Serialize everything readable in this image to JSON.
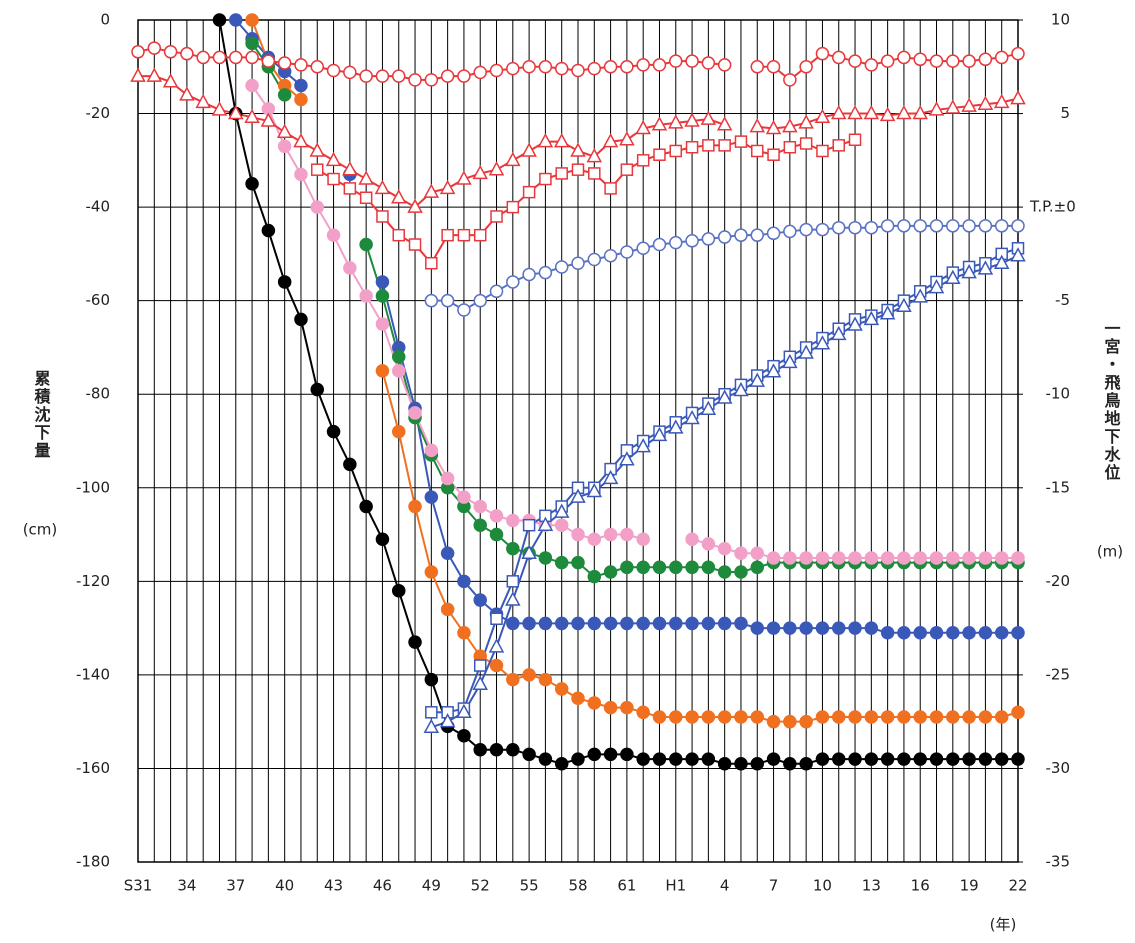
{
  "chart_data": {
    "type": "line",
    "y_label": "累積沈下量",
    "y_unit": "(cm)",
    "y2_label": "一宮・飛鳥地下水位",
    "y2_unit": "(m)",
    "x_unit": "(年)",
    "x": [
      1956,
      1957,
      1958,
      1959,
      1960,
      1961,
      1962,
      1963,
      1964,
      1965,
      1966,
      1967,
      1968,
      1969,
      1970,
      1971,
      1972,
      1973,
      1974,
      1975,
      1976,
      1977,
      1978,
      1979,
      1980,
      1981,
      1982,
      1983,
      1984,
      1985,
      1986,
      1987,
      1988,
      1989,
      1990,
      1991,
      1992,
      1993,
      1994,
      1995,
      1996,
      1997,
      1998,
      1999,
      2000,
      2001,
      2002,
      2003,
      2004,
      2005,
      2006,
      2007,
      2008,
      2009,
      2010
    ],
    "xlim": [
      1956,
      2010
    ],
    "xticks": [
      {
        "value": 1956,
        "label": "S31"
      },
      {
        "value": 1959,
        "label": "34"
      },
      {
        "value": 1962,
        "label": "37"
      },
      {
        "value": 1965,
        "label": "40"
      },
      {
        "value": 1968,
        "label": "43"
      },
      {
        "value": 1971,
        "label": "46"
      },
      {
        "value": 1974,
        "label": "49"
      },
      {
        "value": 1977,
        "label": "52"
      },
      {
        "value": 1980,
        "label": "55"
      },
      {
        "value": 1983,
        "label": "58"
      },
      {
        "value": 1986,
        "label": "61"
      },
      {
        "value": 1989,
        "label": "H1"
      },
      {
        "value": 1992,
        "label": "4"
      },
      {
        "value": 1995,
        "label": "7"
      },
      {
        "value": 1998,
        "label": "10"
      },
      {
        "value": 2001,
        "label": "13"
      },
      {
        "value": 2004,
        "label": "16"
      },
      {
        "value": 2007,
        "label": "19"
      },
      {
        "value": 2010,
        "label": "22"
      }
    ],
    "ylim": [
      -180,
      0
    ],
    "yticks": [
      -180,
      -160,
      -140,
      -120,
      -100,
      -80,
      -60,
      -40,
      -20,
      0
    ],
    "y2lim": [
      -35,
      10
    ],
    "y2ticks": [
      -35,
      -30,
      -25,
      -20,
      -15,
      -10,
      -5,
      {
        "value": 0,
        "label": "T.P.±0"
      },
      5,
      10
    ],
    "grid": true,
    "series": [
      {
        "color": "#000000",
        "marker": "circle",
        "filled": true,
        "values": [
          null,
          null,
          null,
          null,
          null,
          0,
          -20,
          -35,
          -45,
          -56,
          -64,
          -79,
          -88,
          -95,
          -104,
          -111,
          -122,
          -133,
          -141,
          -151,
          -153,
          -156,
          -156,
          -156,
          -157,
          -158,
          -159,
          -158,
          -157,
          -157,
          -157,
          -158,
          -158,
          -158,
          -158,
          -158,
          -159,
          -159,
          -159,
          -158,
          -159,
          -159,
          -158,
          -158,
          -158,
          -158,
          -158,
          -158,
          -158,
          -158,
          -158,
          -158,
          -158,
          -158,
          -158
        ]
      },
      {
        "color": "#3a58b8",
        "marker": "circle",
        "filled": true,
        "values": [
          null,
          null,
          null,
          null,
          null,
          null,
          0,
          -4,
          -8,
          -11,
          -14,
          null,
          null,
          -33,
          null,
          -56,
          -70,
          -83,
          -102,
          -114,
          -120,
          -124,
          -127,
          -129,
          -129,
          -129,
          -129,
          -129,
          -129,
          -129,
          -129,
          -129,
          -129,
          -129,
          -129,
          -129,
          -129,
          -129,
          -130,
          -130,
          -130,
          -130,
          -130,
          -130,
          -130,
          -130,
          -131,
          -131,
          -131,
          -131,
          -131,
          -131,
          -131,
          -131,
          -131
        ]
      },
      {
        "color": "#f07020",
        "marker": "circle",
        "filled": true,
        "values": [
          null,
          null,
          null,
          null,
          null,
          null,
          null,
          0,
          -9,
          -14,
          -17,
          null,
          null,
          null,
          null,
          -75,
          -88,
          -104,
          -118,
          -126,
          -131,
          -136,
          -138,
          -141,
          -140,
          -141,
          -143,
          -145,
          -146,
          -147,
          -147,
          -148,
          -149,
          -149,
          -149,
          -149,
          -149,
          -149,
          -149,
          -150,
          -150,
          -150,
          -149,
          -149,
          -149,
          -149,
          -149,
          -149,
          -149,
          -149,
          -149,
          -149,
          -149,
          -149,
          -148
        ]
      },
      {
        "color": "#1e8a3c",
        "marker": "circle",
        "filled": true,
        "values": [
          null,
          null,
          null,
          null,
          null,
          null,
          null,
          -5,
          -10,
          -16,
          null,
          null,
          null,
          null,
          -48,
          -59,
          -72,
          -85,
          -93,
          -100,
          -104,
          -108,
          -110,
          -113,
          -114,
          -115,
          -116,
          -116,
          -119,
          -118,
          -117,
          -117,
          -117,
          -117,
          -117,
          -117,
          -118,
          -118,
          -117,
          -116,
          -116,
          -116,
          -116,
          -116,
          -116,
          -116,
          -116,
          -116,
          -116,
          -116,
          -116,
          -116,
          -116,
          -116,
          -116
        ]
      },
      {
        "color": "#f2a0c8",
        "marker": "circle",
        "filled": true,
        "values": [
          null,
          null,
          null,
          null,
          null,
          null,
          null,
          -14,
          -19,
          -27,
          -33,
          -40,
          -46,
          -53,
          -59,
          -65,
          -75,
          -84,
          -92,
          -98,
          -102,
          -104,
          -106,
          -107,
          -107,
          -108,
          -108,
          -110,
          -111,
          -110,
          -110,
          -111,
          null,
          null,
          -111,
          -112,
          -113,
          -114,
          -114,
          -115,
          -115,
          -115,
          -115,
          -115,
          -115,
          -115,
          -115,
          -115,
          -115,
          -115,
          -115,
          -115,
          -115,
          -115,
          -115
        ]
      },
      {
        "color": "#e8383c",
        "marker": "circle",
        "filled": false,
        "axis": "y2",
        "values": [
          8.3,
          8.5,
          8.3,
          8.2,
          8,
          8,
          8,
          8,
          7.8,
          7.7,
          7.6,
          7.5,
          7.3,
          7.2,
          7,
          7,
          7,
          6.8,
          6.8,
          7,
          7,
          7.2,
          7.3,
          7.4,
          7.5,
          7.5,
          7.4,
          7.3,
          7.4,
          7.5,
          7.5,
          7.6,
          7.6,
          7.8,
          7.8,
          7.7,
          7.6,
          null,
          7.5,
          7.5,
          6.8,
          7.5,
          8.2,
          8,
          7.8,
          7.6,
          7.8,
          8,
          7.9,
          7.8,
          7.8,
          7.8,
          7.9,
          8,
          8.2
        ]
      },
      {
        "color": "#e8383c",
        "marker": "triangle",
        "filled": false,
        "axis": "y2",
        "values": [
          7,
          7,
          6.7,
          6,
          5.6,
          5.2,
          5,
          4.8,
          4.6,
          4,
          3.5,
          3,
          2.5,
          2,
          1.5,
          1,
          0.5,
          0,
          0.8,
          1,
          1.5,
          1.8,
          2,
          2.5,
          3,
          3.5,
          3.5,
          3,
          2.7,
          3.5,
          3.6,
          4.2,
          4.4,
          4.5,
          4.6,
          4.7,
          4.4,
          null,
          4.3,
          4.2,
          4.3,
          4.5,
          4.8,
          5,
          5,
          5,
          4.9,
          5,
          5,
          5.2,
          5.3,
          5.4,
          5.5,
          5.6,
          5.8
        ]
      },
      {
        "color": "#e8383c",
        "marker": "square",
        "filled": false,
        "axis": "y2",
        "values": [
          null,
          null,
          null,
          null,
          null,
          null,
          null,
          null,
          null,
          null,
          null,
          2,
          1.5,
          1,
          0.5,
          -0.5,
          -1.5,
          -2,
          -3,
          -1.5,
          -1.5,
          -1.5,
          -0.5,
          0,
          0.8,
          1.5,
          1.8,
          2,
          1.8,
          1,
          2,
          2.5,
          2.8,
          3,
          3.2,
          3.3,
          3.3,
          3.5,
          3,
          2.8,
          3.2,
          3.4,
          3,
          3.3,
          3.6,
          null,
          null,
          null,
          null,
          null,
          null,
          null,
          null,
          null,
          null
        ]
      },
      {
        "color": "#5a72c4",
        "marker": "circle",
        "filled": false,
        "axis": "y2",
        "values": [
          null,
          null,
          null,
          null,
          null,
          null,
          null,
          null,
          null,
          null,
          null,
          null,
          null,
          null,
          null,
          null,
          null,
          null,
          -5,
          -5,
          -5.5,
          -5,
          -4.5,
          -4,
          -3.6,
          -3.5,
          -3.2,
          -3,
          -2.8,
          -2.6,
          -2.4,
          -2.2,
          -2,
          -1.9,
          -1.8,
          -1.7,
          -1.6,
          -1.5,
          -1.5,
          -1.4,
          -1.3,
          -1.2,
          -1.2,
          -1.1,
          -1.1,
          -1.1,
          -1,
          -1,
          -1,
          -1,
          -1,
          -1,
          -1,
          -1,
          -1
        ]
      },
      {
        "color": "#3a58b8",
        "marker": "square",
        "filled": false,
        "axis": "y2",
        "values": [
          null,
          null,
          null,
          null,
          null,
          null,
          null,
          null,
          null,
          null,
          null,
          null,
          null,
          null,
          null,
          null,
          null,
          null,
          -27,
          -27,
          -26.8,
          -24.5,
          -22,
          -20,
          -17,
          -16.5,
          -16,
          -15,
          -15,
          -14,
          -13,
          -12.5,
          -12,
          -11.5,
          -11,
          -10.5,
          -10,
          -9.5,
          -9,
          -8.5,
          -8,
          -7.5,
          -7,
          -6.5,
          -6,
          -5.8,
          -5.5,
          -5,
          -4.5,
          -4,
          -3.5,
          -3.2,
          -3,
          -2.5,
          -2.2
        ]
      },
      {
        "color": "#3a58b8",
        "marker": "triangle",
        "filled": false,
        "axis": "y2",
        "values": [
          null,
          null,
          null,
          null,
          null,
          null,
          null,
          null,
          null,
          null,
          null,
          null,
          null,
          null,
          null,
          null,
          null,
          null,
          -27.8,
          -27.5,
          -27,
          -25.5,
          -23.5,
          -21,
          -18.5,
          -17,
          -16.3,
          -15.5,
          -15.2,
          -14.5,
          -13.5,
          -12.8,
          -12.2,
          -11.8,
          -11.3,
          -10.8,
          -10.2,
          -9.8,
          -9.3,
          -8.8,
          -8.3,
          -7.8,
          -7.3,
          -6.8,
          -6.3,
          -6,
          -5.7,
          -5.3,
          -4.8,
          -4.3,
          -3.8,
          -3.5,
          -3.3,
          -3,
          -2.6
        ]
      }
    ]
  }
}
